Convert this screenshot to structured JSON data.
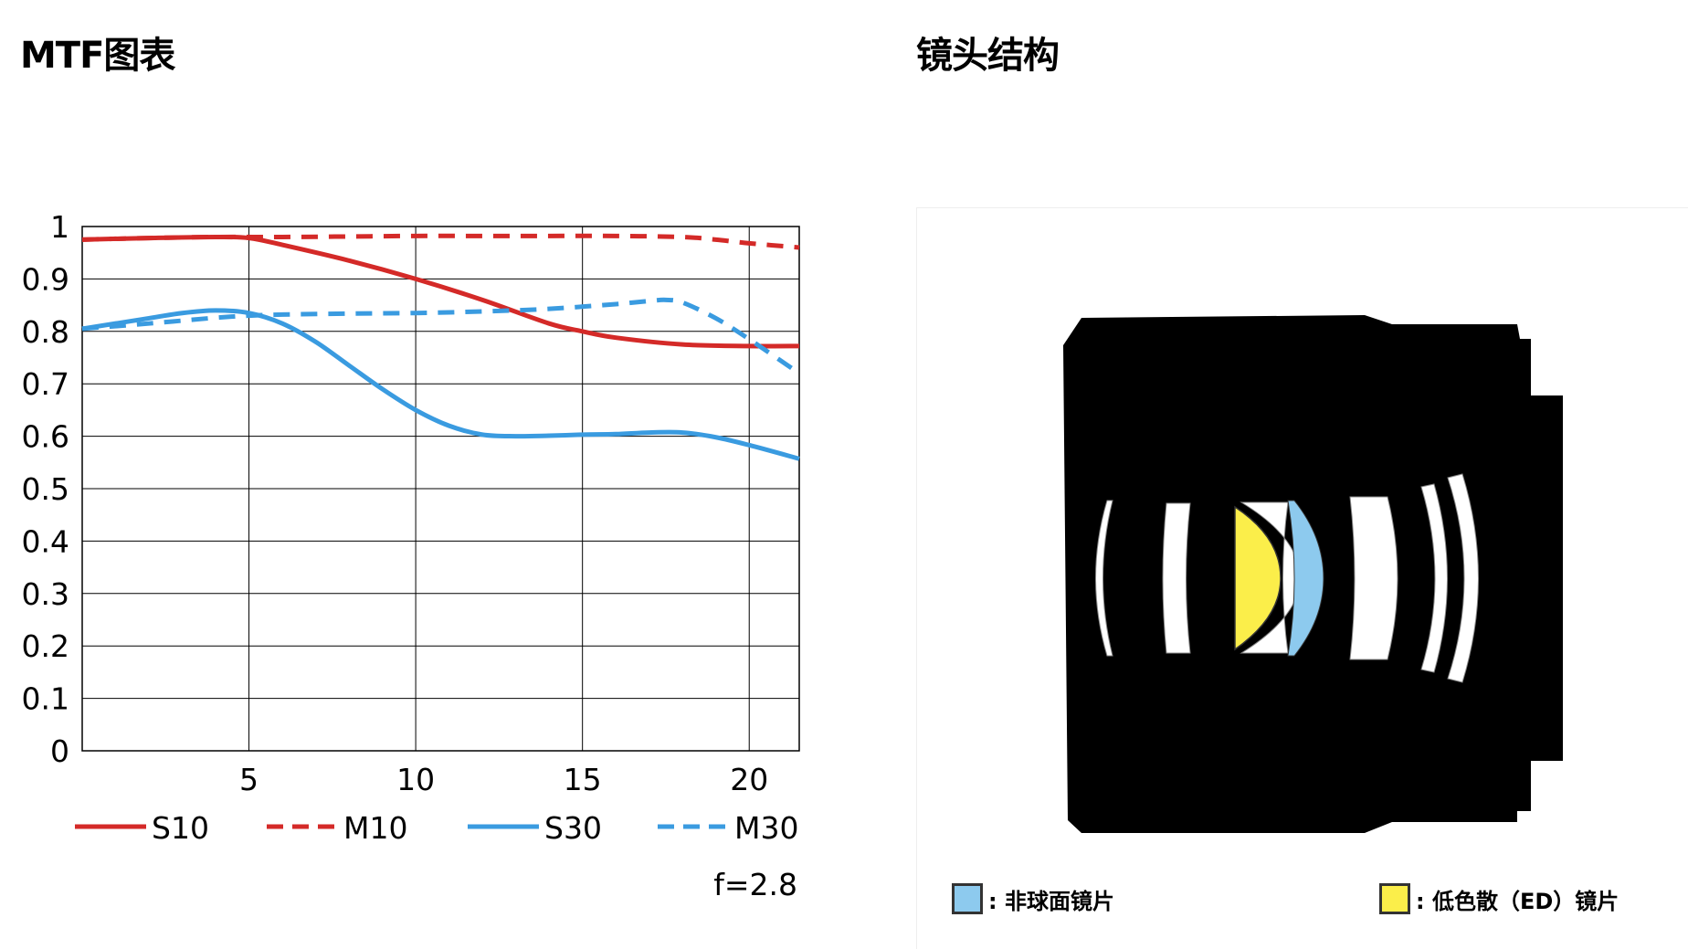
{
  "mtf_title": "MTF图表",
  "lens_title": "镜头结构",
  "chart_data": {
    "type": "line",
    "title": "MTF图表",
    "xlabel": "",
    "ylabel": "",
    "xlim": [
      0,
      21.5
    ],
    "ylim": [
      0,
      1
    ],
    "x_ticks": [
      5,
      10,
      15,
      20
    ],
    "y_ticks": [
      0,
      0.1,
      0.2,
      0.3,
      0.4,
      0.5,
      0.6,
      0.7,
      0.8,
      0.9,
      1
    ],
    "y_tick_labels": [
      "0",
      "0.1",
      "0.2",
      "0.3",
      "0.4",
      "0.5",
      "0.6",
      "0.7",
      "0.8",
      "0.9",
      "1"
    ],
    "grid": true,
    "annotation": "f=2.8",
    "series": [
      {
        "name": "S10",
        "color": "#d42a28",
        "style": "solid",
        "x": [
          0,
          2,
          4,
          5,
          6,
          8,
          10,
          12,
          14,
          15,
          16,
          18,
          20,
          21.5
        ],
        "y": [
          0.975,
          0.978,
          0.98,
          0.978,
          0.965,
          0.935,
          0.9,
          0.86,
          0.815,
          0.8,
          0.788,
          0.775,
          0.772,
          0.772
        ]
      },
      {
        "name": "M10",
        "color": "#d42a28",
        "style": "dashed",
        "x": [
          0,
          2,
          4,
          6,
          8,
          10,
          12,
          14,
          16,
          18,
          19,
          20,
          21.5
        ],
        "y": [
          0.975,
          0.978,
          0.98,
          0.98,
          0.981,
          0.982,
          0.982,
          0.982,
          0.982,
          0.98,
          0.975,
          0.968,
          0.96
        ]
      },
      {
        "name": "S30",
        "color": "#3a9be0",
        "style": "solid",
        "x": [
          0,
          2,
          3,
          4,
          5,
          6,
          7,
          8,
          9,
          10,
          11,
          12,
          13,
          14,
          15,
          16,
          17,
          18,
          19,
          20,
          21.5
        ],
        "y": [
          0.805,
          0.825,
          0.835,
          0.84,
          0.835,
          0.815,
          0.78,
          0.735,
          0.69,
          0.65,
          0.62,
          0.603,
          0.6,
          0.601,
          0.603,
          0.604,
          0.607,
          0.607,
          0.598,
          0.583,
          0.557
        ]
      },
      {
        "name": "M30",
        "color": "#3a9be0",
        "style": "dashed",
        "x": [
          0,
          2,
          4,
          5,
          6,
          8,
          10,
          12,
          14,
          16,
          17,
          17.5,
          18,
          19,
          20,
          21.5
        ],
        "y": [
          0.805,
          0.815,
          0.826,
          0.83,
          0.832,
          0.834,
          0.835,
          0.838,
          0.843,
          0.852,
          0.858,
          0.86,
          0.855,
          0.825,
          0.785,
          0.72
        ]
      }
    ]
  },
  "lens_legend": {
    "aspherical": {
      "label": ": 非球面镜片",
      "color": "#8dcaee"
    },
    "ed": {
      "label": ": 低色散（ED）镜片",
      "color": "#fbee4a"
    }
  }
}
